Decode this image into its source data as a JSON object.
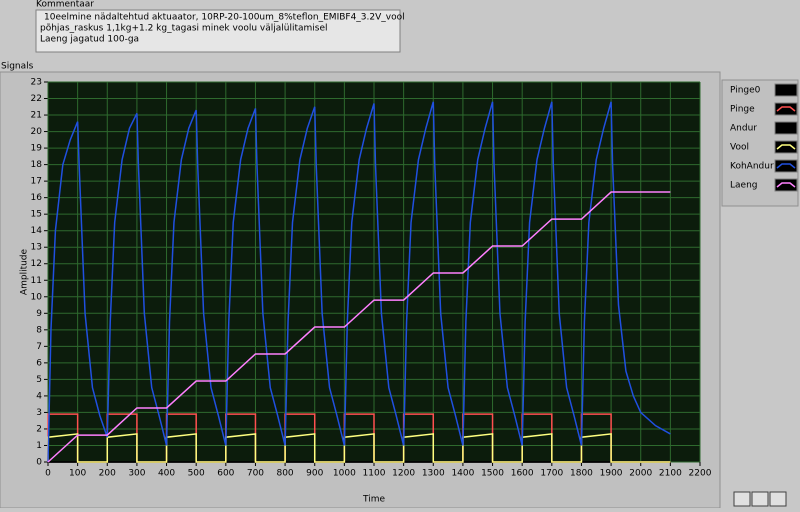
{
  "comment": {
    "label": "Kommentaar",
    "lines": [
      "10eelmine nädaltehtud aktuaator,  10RP-20-100um_8%teflon_EMIBF4_3.2V_vool",
      "põhjas_raskus 1,1kg+1.2 kg_tagasi minek voolu väljalülitamisel",
      "Laeng jagatud 100-ga"
    ]
  },
  "panel_label": "Signals",
  "chart_data": {
    "type": "line",
    "xlabel": "Time",
    "ylabel": "Amplitude",
    "xlim": [
      0,
      2200
    ],
    "xticks": [
      0,
      100,
      200,
      300,
      400,
      500,
      600,
      700,
      800,
      900,
      1000,
      1100,
      1200,
      1300,
      1400,
      1500,
      1600,
      1700,
      1800,
      1900,
      2000,
      2100,
      2200
    ],
    "ylim": [
      0,
      23
    ],
    "yticks": [
      0,
      1,
      2,
      3,
      4,
      5,
      6,
      7,
      8,
      9,
      10,
      11,
      12,
      13,
      14,
      15,
      16,
      17,
      18,
      19,
      20,
      21,
      22,
      23
    ],
    "grid": true,
    "legend": "right",
    "series": [
      {
        "name": "Pinge0",
        "color": "#000000",
        "x": [
          0,
          2100
        ],
        "values": [
          0,
          0
        ]
      },
      {
        "name": "Pinge",
        "color": "#ff5050",
        "x": [
          0,
          0,
          100,
          100,
          200,
          200,
          300,
          300,
          400,
          400,
          500,
          500,
          600,
          600,
          700,
          700,
          800,
          800,
          900,
          900,
          1000,
          1000,
          1100,
          1100,
          1200,
          1200,
          1300,
          1300,
          1400,
          1400,
          1500,
          1500,
          1600,
          1600,
          1700,
          1700,
          1800,
          1800,
          1900,
          1900,
          2100
        ],
        "values": [
          0,
          2.9,
          2.9,
          0,
          0,
          2.9,
          2.9,
          0,
          0,
          2.9,
          2.9,
          0,
          0,
          2.9,
          2.9,
          0,
          0,
          2.9,
          2.9,
          0,
          0,
          2.9,
          2.9,
          0,
          0,
          2.9,
          2.9,
          0,
          0,
          2.9,
          2.9,
          0,
          0,
          2.9,
          2.9,
          0,
          0,
          2.9,
          2.9,
          0,
          0
        ]
      },
      {
        "name": "Andur",
        "color": "#000000",
        "x": [
          0,
          2100
        ],
        "values": [
          0,
          0
        ]
      },
      {
        "name": "Vool",
        "color": "#ffff80",
        "x": [
          0,
          0,
          100,
          100,
          200,
          200,
          300,
          300,
          400,
          400,
          500,
          500,
          600,
          600,
          700,
          700,
          800,
          800,
          900,
          900,
          1000,
          1000,
          1100,
          1100,
          1200,
          1200,
          1300,
          1300,
          1400,
          1400,
          1500,
          1500,
          1600,
          1600,
          1700,
          1700,
          1800,
          1800,
          1900,
          1900,
          2100
        ],
        "values": [
          0,
          1.5,
          1.7,
          0,
          0,
          1.5,
          1.7,
          0,
          0,
          1.5,
          1.7,
          0,
          0,
          1.5,
          1.7,
          0,
          0,
          1.5,
          1.7,
          0,
          0,
          1.5,
          1.7,
          0,
          0,
          1.5,
          1.7,
          0,
          0,
          1.5,
          1.7,
          0,
          0,
          1.5,
          1.7,
          0,
          0,
          1.5,
          1.7,
          0,
          0
        ]
      },
      {
        "name": "KohAndur",
        "color": "#2050e0",
        "x": [
          0,
          10,
          25,
          50,
          75,
          100,
          105,
          125,
          150,
          175,
          200,
          210,
          225,
          250,
          275,
          300,
          305,
          325,
          350,
          375,
          400,
          410,
          425,
          450,
          475,
          500,
          505,
          525,
          550,
          575,
          600,
          610,
          625,
          650,
          675,
          700,
          705,
          725,
          750,
          775,
          800,
          810,
          825,
          850,
          875,
          900,
          905,
          925,
          950,
          975,
          1000,
          1010,
          1025,
          1050,
          1075,
          1100,
          1105,
          1125,
          1150,
          1175,
          1200,
          1210,
          1225,
          1250,
          1275,
          1300,
          1305,
          1325,
          1350,
          1375,
          1400,
          1410,
          1425,
          1450,
          1475,
          1500,
          1505,
          1525,
          1550,
          1575,
          1600,
          1610,
          1625,
          1650,
          1675,
          1700,
          1705,
          1725,
          1750,
          1775,
          1800,
          1810,
          1825,
          1850,
          1875,
          1900,
          1905,
          1925,
          1950,
          1975,
          2000,
          2050,
          2100
        ],
        "values": [
          0,
          8,
          14,
          18,
          19.5,
          20.6,
          18,
          9,
          4.5,
          2.8,
          1.5,
          8.5,
          14.5,
          18.3,
          20.2,
          21.1,
          18,
          9,
          4.5,
          2.8,
          1,
          8.5,
          14.5,
          18.3,
          20.2,
          21.3,
          18,
          9,
          4.5,
          2.8,
          1,
          8.5,
          14.5,
          18.3,
          20.2,
          21.4,
          18,
          9,
          4.5,
          2.8,
          1,
          8.5,
          14.5,
          18.3,
          20.2,
          21.5,
          18,
          9,
          4.5,
          2.8,
          1,
          8.5,
          14.5,
          18.3,
          20.2,
          21.7,
          18,
          9,
          4.5,
          2.8,
          1,
          8.5,
          14.5,
          18.3,
          20.2,
          21.8,
          18,
          9,
          4.5,
          2.8,
          1,
          8.5,
          14.5,
          18.3,
          20.2,
          21.8,
          18,
          9,
          4.5,
          2.8,
          1,
          8.5,
          14.5,
          18.3,
          20.2,
          21.8,
          18,
          9,
          4.5,
          2.8,
          1,
          8.5,
          14.5,
          18.3,
          20.2,
          21.8,
          18,
          9.5,
          5.5,
          4,
          3,
          2.2,
          1.7
        ]
      },
      {
        "name": "Laeng",
        "color": "#ff80ff",
        "x": [
          0,
          100,
          200,
          300,
          400,
          500,
          600,
          700,
          800,
          900,
          1000,
          1100,
          1200,
          1300,
          1400,
          1500,
          1600,
          1700,
          1800,
          1900,
          2100
        ],
        "values": [
          0,
          1.63,
          1.63,
          3.27,
          3.27,
          4.9,
          4.9,
          6.54,
          6.54,
          8.17,
          8.17,
          9.8,
          9.8,
          11.44,
          11.44,
          13.07,
          13.07,
          14.7,
          14.7,
          16.34,
          16.34
        ]
      }
    ]
  }
}
